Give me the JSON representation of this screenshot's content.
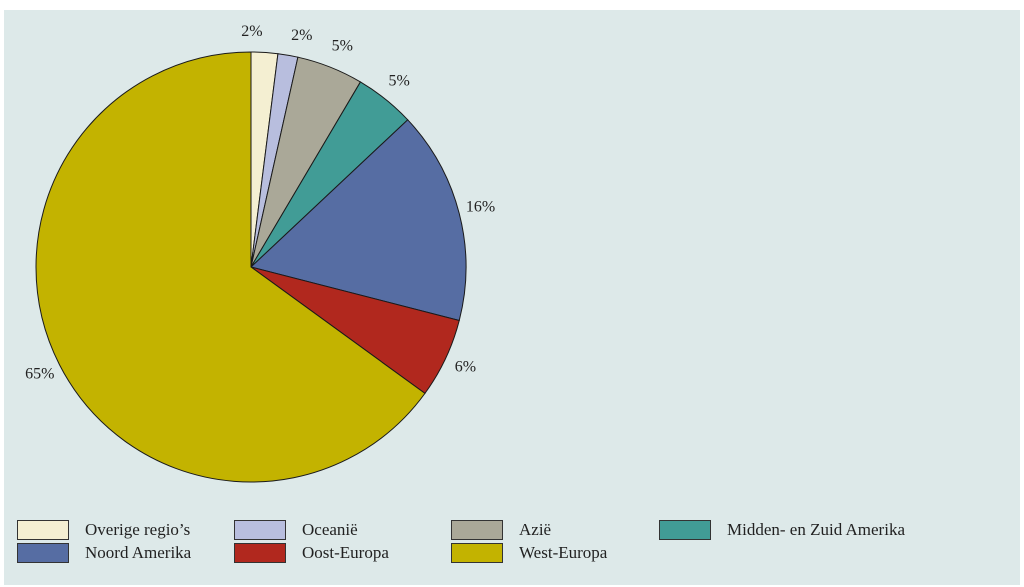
{
  "chart_data": {
    "type": "pie",
    "title": "",
    "slices": [
      {
        "name": "Overige regio’s",
        "value": 2,
        "label": "2%",
        "color": "#f4efd2"
      },
      {
        "name": "Oceanië",
        "value": 1.5,
        "label": "2%",
        "color": "#b8bede"
      },
      {
        "name": "Azië",
        "value": 5,
        "label": "5%",
        "color": "#aaa898"
      },
      {
        "name": "Midden- en Zuid Amerika",
        "value": 4.5,
        "label": "5%",
        "color": "#419c96"
      },
      {
        "name": "Noord Amerika",
        "value": 16,
        "label": "16%",
        "color": "#566da3"
      },
      {
        "name": "Oost-Europa",
        "value": 6,
        "label": "6%",
        "color": "#b1281e"
      },
      {
        "name": "West-Europa",
        "value": 65,
        "label": "65%",
        "color": "#c3b300"
      }
    ],
    "start_angle": "12 o'clock",
    "direction": "clockwise",
    "legend_position": "bottom"
  }
}
